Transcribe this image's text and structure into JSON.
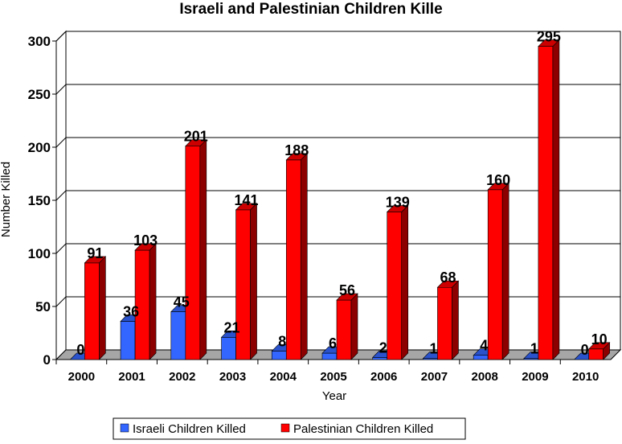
{
  "chart_data": {
    "type": "bar",
    "title": "Israeli and Palestinian Children Kille",
    "xlabel": "Year",
    "ylabel": "Number Killed",
    "categories": [
      "2000",
      "2001",
      "2002",
      "2003",
      "2004",
      "2005",
      "2006",
      "2007",
      "2008",
      "2009",
      "2010"
    ],
    "series": [
      {
        "name": "Israeli Children Killed",
        "color": "#3366ff",
        "values": [
          0,
          36,
          45,
          21,
          8,
          6,
          2,
          1,
          4,
          1,
          0
        ]
      },
      {
        "name": "Palestinian Children Killed",
        "color": "#ff0000",
        "values": [
          91,
          103,
          201,
          141,
          188,
          56,
          139,
          68,
          160,
          295,
          10
        ]
      }
    ],
    "ylim": [
      0,
      300
    ],
    "yticks": [
      0,
      50,
      100,
      150,
      200,
      250,
      300
    ],
    "grid": true,
    "legend_position": "bottom",
    "style": "3d-clustered-column"
  }
}
